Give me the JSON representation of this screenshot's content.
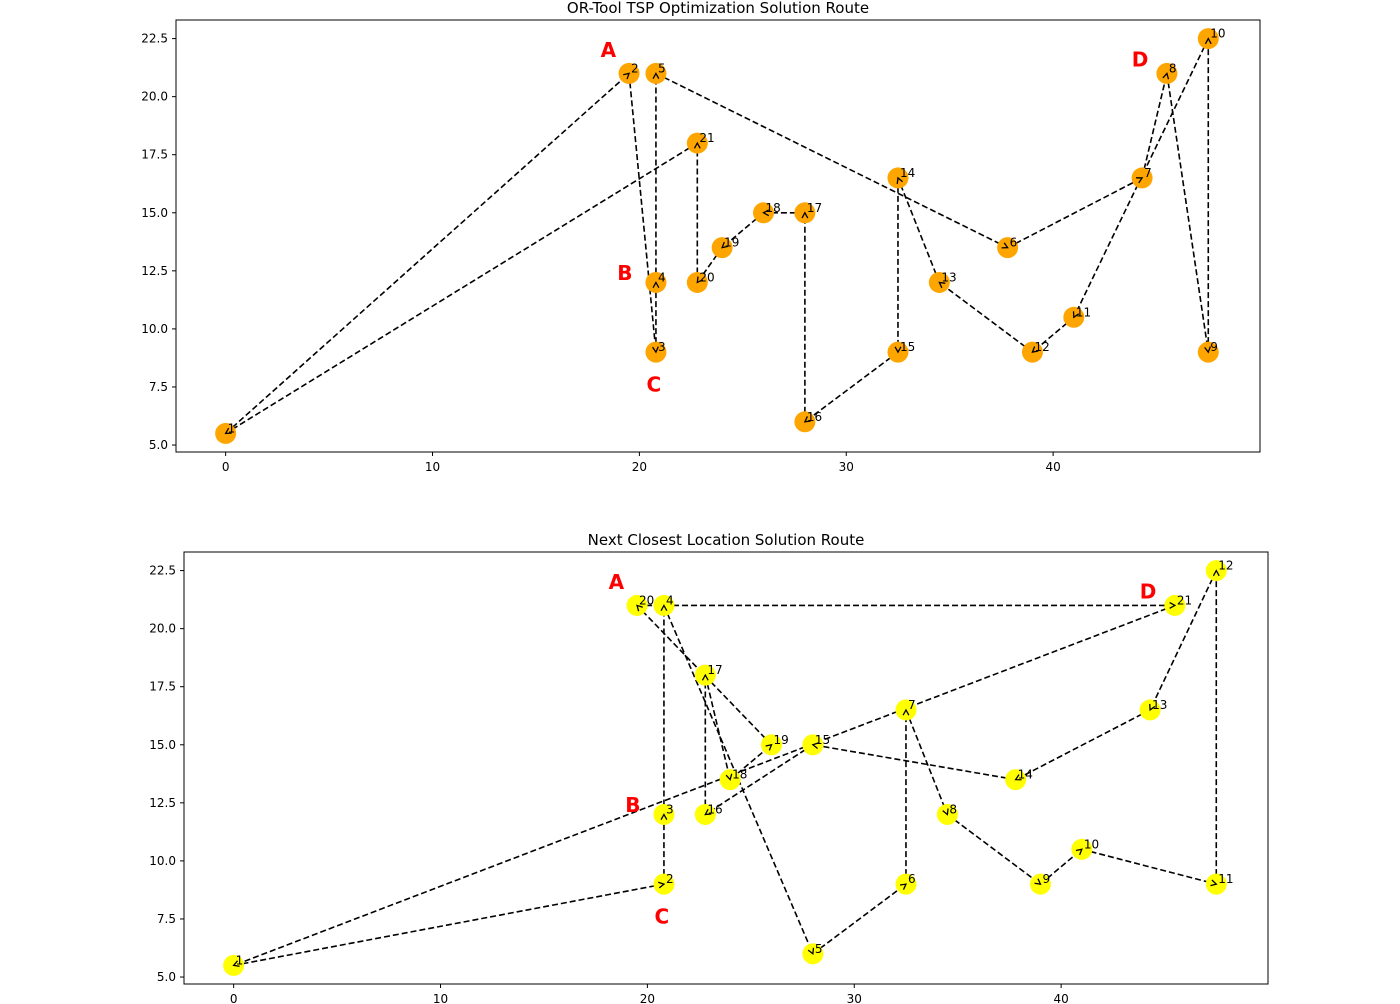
{
  "chart_data": [
    {
      "type": "scatter",
      "title": "OR-Tool TSP Optimization Solution Route",
      "xlabel": "",
      "ylabel": "",
      "xlim": [
        -2.4,
        50.0
      ],
      "ylim": [
        4.7,
        23.3
      ],
      "xticks": [
        0,
        10,
        20,
        30,
        40
      ],
      "yticks": [
        5.0,
        7.5,
        10.0,
        12.5,
        15.0,
        17.5,
        20.0,
        22.5
      ],
      "grid": false,
      "marker_color": "#ffa500",
      "line_style": "dashed",
      "line_color": "#000000",
      "points": [
        {
          "label": "1",
          "x": 0,
          "y": 5.5
        },
        {
          "label": "2",
          "x": 19.5,
          "y": 21
        },
        {
          "label": "3",
          "x": 20.8,
          "y": 9
        },
        {
          "label": "4",
          "x": 20.8,
          "y": 12
        },
        {
          "label": "5",
          "x": 20.8,
          "y": 21
        },
        {
          "label": "6",
          "x": 37.8,
          "y": 13.5
        },
        {
          "label": "7",
          "x": 44.3,
          "y": 16.5
        },
        {
          "label": "8",
          "x": 45.5,
          "y": 21
        },
        {
          "label": "9",
          "x": 47.5,
          "y": 9
        },
        {
          "label": "10",
          "x": 47.5,
          "y": 22.5
        },
        {
          "label": "11",
          "x": 41,
          "y": 10.5
        },
        {
          "label": "12",
          "x": 39,
          "y": 9
        },
        {
          "label": "13",
          "x": 34.5,
          "y": 12
        },
        {
          "label": "14",
          "x": 32.5,
          "y": 16.5
        },
        {
          "label": "15",
          "x": 32.5,
          "y": 9
        },
        {
          "label": "16",
          "x": 28,
          "y": 6
        },
        {
          "label": "17",
          "x": 28,
          "y": 15
        },
        {
          "label": "18",
          "x": 26,
          "y": 15
        },
        {
          "label": "19",
          "x": 24,
          "y": 13.5
        },
        {
          "label": "20",
          "x": 22.8,
          "y": 12
        },
        {
          "label": "21",
          "x": 22.8,
          "y": 18
        }
      ],
      "annotations": [
        {
          "text": "A",
          "x": 18.5,
          "y": 22
        },
        {
          "text": "B",
          "x": 19.3,
          "y": 12.4
        },
        {
          "text": "C",
          "x": 20.7,
          "y": 7.6
        },
        {
          "text": "D",
          "x": 44.2,
          "y": 21.6
        }
      ]
    },
    {
      "type": "scatter",
      "title": "Next Closest Location Solution Route",
      "xlabel": "",
      "ylabel": "",
      "xlim": [
        -2.4,
        50.0
      ],
      "ylim": [
        4.7,
        23.3
      ],
      "xticks": [
        0,
        10,
        20,
        30,
        40
      ],
      "yticks": [
        5.0,
        7.5,
        10.0,
        12.5,
        15.0,
        17.5,
        20.0,
        22.5
      ],
      "grid": false,
      "marker_color": "#ffff00",
      "line_style": "dashed",
      "line_color": "#000000",
      "points": [
        {
          "label": "1",
          "x": 0,
          "y": 5.5
        },
        {
          "label": "2",
          "x": 20.8,
          "y": 9
        },
        {
          "label": "3",
          "x": 20.8,
          "y": 12
        },
        {
          "label": "4",
          "x": 20.8,
          "y": 21
        },
        {
          "label": "5",
          "x": 28,
          "y": 6
        },
        {
          "label": "6",
          "x": 32.5,
          "y": 9
        },
        {
          "label": "7",
          "x": 32.5,
          "y": 16.5
        },
        {
          "label": "8",
          "x": 34.5,
          "y": 12
        },
        {
          "label": "9",
          "x": 39,
          "y": 9
        },
        {
          "label": "10",
          "x": 41,
          "y": 10.5
        },
        {
          "label": "11",
          "x": 47.5,
          "y": 9
        },
        {
          "label": "12",
          "x": 47.5,
          "y": 22.5
        },
        {
          "label": "13",
          "x": 44.3,
          "y": 16.5
        },
        {
          "label": "14",
          "x": 37.8,
          "y": 13.5
        },
        {
          "label": "15",
          "x": 28,
          "y": 15
        },
        {
          "label": "16",
          "x": 22.8,
          "y": 12
        },
        {
          "label": "17",
          "x": 22.8,
          "y": 18
        },
        {
          "label": "18",
          "x": 24,
          "y": 13.5
        },
        {
          "label": "19",
          "x": 26,
          "y": 15
        },
        {
          "label": "20",
          "x": 19.5,
          "y": 21
        },
        {
          "label": "21",
          "x": 45.5,
          "y": 21
        }
      ],
      "annotations": [
        {
          "text": "A",
          "x": 18.5,
          "y": 22
        },
        {
          "text": "B",
          "x": 19.3,
          "y": 12.4
        },
        {
          "text": "C",
          "x": 20.7,
          "y": 7.6
        },
        {
          "text": "D",
          "x": 44.2,
          "y": 21.6
        }
      ]
    }
  ]
}
